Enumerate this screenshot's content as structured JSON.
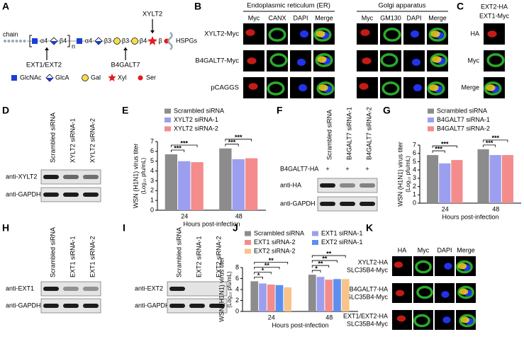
{
  "figure": {
    "A": {
      "letter": "A",
      "chain": "chain",
      "linkages": [
        "α4",
        "β4",
        "α4",
        "β3",
        "β3",
        "β4",
        "β"
      ],
      "repeat": "n",
      "end": "HSPGs",
      "enzymes": [
        "XYLT2",
        "EXT1/EXT2",
        "B4GALT7"
      ],
      "legend": [
        "GlcNAc",
        "GlcA",
        "Gal",
        "Xyl",
        "Ser"
      ]
    },
    "B": {
      "letter": "B",
      "groups": [
        "Endoplasmic reticulum (ER)",
        "Golgi apparatus"
      ],
      "columns": [
        "Myc",
        "CANX",
        "DAPI",
        "Merge",
        "Myc",
        "GM130",
        "DAPI",
        "Merge"
      ],
      "rows": [
        "XYLT2-Myc",
        "B4GALT7-Myc",
        "pCAGGS"
      ]
    },
    "C": {
      "letter": "C",
      "header": [
        "EXT2-HA",
        "EXT1-Myc"
      ],
      "rows": [
        "HA",
        "Myc",
        "Merge"
      ]
    },
    "D": {
      "letter": "D",
      "lanes": [
        "Scrambled siRNA",
        "XYLT2 siRNA-1",
        "XYLT2 siRNA-2"
      ],
      "rows": [
        "anti-XYLT2",
        "anti-GAPDH"
      ]
    },
    "F": {
      "letter": "F",
      "lanes": [
        "Scrambled siRNA",
        "B4GALT7 siRNA-1",
        "B4GALT7 siRNA-2"
      ],
      "treatment": "B4GALT7-HA",
      "treatment_marks": [
        "+",
        "+",
        "+"
      ],
      "rows": [
        "anti-HA",
        "anti-GAPDH"
      ]
    },
    "H": {
      "letter": "H",
      "lanes": [
        "Scrambled siRNA",
        "EXT1 siRNA-1",
        "EXT1 siRNA-2"
      ],
      "rows": [
        "anti-EXT1",
        "anti-GAPDH"
      ]
    },
    "I": {
      "letter": "I",
      "lanes": [
        "Scrambled siRNA",
        "EXT2 siRNA-1",
        "EXT2 siRNA-2"
      ],
      "rows": [
        "anti-EXT2",
        "anti-GAPDH"
      ]
    },
    "K": {
      "letter": "K",
      "columns": [
        "HA",
        "Myc",
        "DAPI",
        "Merge"
      ],
      "rows": [
        [
          "XYLT2-HA",
          "SLC35B4-Myc"
        ],
        [
          "B4GALT7-HA",
          "SLC35B4-Myc"
        ],
        [
          "EXT1/EXT2-HA",
          "SLC35B4-Myc"
        ]
      ]
    }
  },
  "chart_data": [
    {
      "type": "bar",
      "panel": "E",
      "ylabel": [
        "WSN (H1N1) virus titer",
        "(Log₁₀ pfu/mL)"
      ],
      "xlabel": "Hours post-infection",
      "categories": [
        "24",
        "48"
      ],
      "ylim": [
        0,
        7
      ],
      "yticks": [
        0,
        1,
        2,
        3,
        4,
        5,
        6,
        7
      ],
      "series": [
        {
          "name": "Scrambled siRNA",
          "color": "#8c8c8c",
          "values": [
            5.7,
            6.3
          ]
        },
        {
          "name": "XYLT2 siRNA-1",
          "color": "#9c9ff0",
          "values": [
            5.0,
            5.2
          ],
          "significance": [
            "***",
            "***"
          ]
        },
        {
          "name": "XYLT2 siRNA-2",
          "color": "#f48c8c",
          "values": [
            4.9,
            5.3
          ],
          "significance": [
            "***",
            "***"
          ]
        }
      ]
    },
    {
      "type": "bar",
      "panel": "G",
      "ylabel": [
        "WSN (H1N1) virus titer",
        "(Log₁₀ pfu/mL)"
      ],
      "xlabel": "Hours post-infection",
      "categories": [
        "24",
        "48"
      ],
      "ylim": [
        0,
        7
      ],
      "yticks": [
        0,
        1,
        2,
        3,
        4,
        5,
        6,
        7
      ],
      "series": [
        {
          "name": "Scrambled siRNA",
          "color": "#8c8c8c",
          "values": [
            5.8,
            6.5
          ]
        },
        {
          "name": "B4GALT7 siRNA-1",
          "color": "#9c9ff0",
          "values": [
            4.8,
            5.8
          ],
          "significance": [
            "***",
            "***"
          ]
        },
        {
          "name": "B4GALT7 siRNA-2",
          "color": "#f48c8c",
          "values": [
            5.2,
            5.8
          ],
          "significance": [
            "***",
            "***"
          ]
        }
      ]
    },
    {
      "type": "bar",
      "panel": "J",
      "ylabel": [
        "WSN (H1N1) virus titer",
        "(Log₁₀ pfu/mL)"
      ],
      "xlabel": "Hours post-infection",
      "categories": [
        "24",
        "48"
      ],
      "ylim": [
        0,
        8
      ],
      "yticks": [
        0,
        2,
        4,
        6,
        8
      ],
      "series": [
        {
          "name": "Scrambled siRNA",
          "color": "#8c8c8c",
          "values": [
            5.5,
            6.7
          ]
        },
        {
          "name": "EXT1 siRNA-1",
          "color": "#9c9ff0",
          "values": [
            5.1,
            6.3
          ],
          "significance": [
            "*",
            "*"
          ]
        },
        {
          "name": "EXT1 siRNA-2",
          "color": "#f48c8c",
          "values": [
            4.9,
            5.8
          ],
          "significance": [
            "*",
            "**"
          ]
        },
        {
          "name": "EXT2 siRNA-1",
          "color": "#5b8ff2",
          "values": [
            4.8,
            5.9
          ],
          "significance": [
            "**",
            "**"
          ]
        },
        {
          "name": "EXT2 siRNA-2",
          "color": "#f8c48c",
          "values": [
            4.4,
            5.9
          ],
          "significance": [
            "**",
            "**"
          ]
        }
      ]
    }
  ]
}
